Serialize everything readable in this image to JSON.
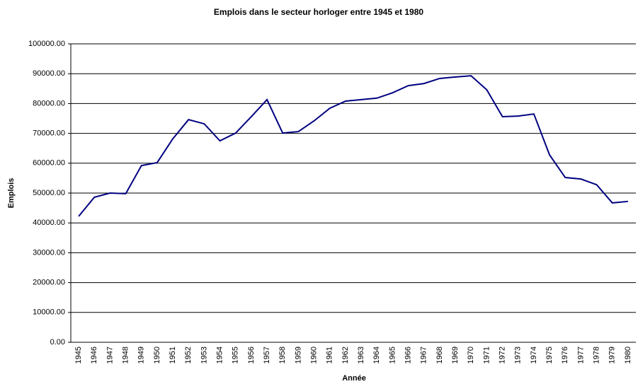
{
  "chart_data": {
    "type": "line",
    "title": "Emplois dans le secteur horloger entre 1945 et 1980",
    "xlabel": "Année",
    "ylabel": "Emplois",
    "categories": [
      "1945",
      "1946",
      "1947",
      "1948",
      "1949",
      "1950",
      "1951",
      "1952",
      "1953",
      "1954",
      "1955",
      "1956",
      "1957",
      "1958",
      "1959",
      "1960",
      "1961",
      "1962",
      "1963",
      "1964",
      "1965",
      "1966",
      "1967",
      "1968",
      "1969",
      "1970",
      "1971",
      "1972",
      "1973",
      "1974",
      "1975",
      "1976",
      "1977",
      "1978",
      "1979",
      "1980"
    ],
    "series": [
      {
        "name": "Emplois",
        "color": "#000080",
        "values": [
          42200,
          48600,
          50000,
          49800,
          59200,
          60200,
          68200,
          74600,
          73200,
          67500,
          70100,
          75600,
          81300,
          70100,
          70600,
          74200,
          78400,
          80800,
          81300,
          81800,
          83600,
          86000,
          86700,
          88400,
          88900,
          89300,
          84600,
          75600,
          75800,
          76500,
          62800,
          55200,
          54700,
          52800,
          46700,
          47200
        ]
      }
    ],
    "ylim": [
      0,
      100000
    ],
    "yticks": [
      {
        "value": 0,
        "label": "0.00"
      },
      {
        "value": 10000,
        "label": "10000.00"
      },
      {
        "value": 20000,
        "label": "20000.00"
      },
      {
        "value": 30000,
        "label": "30000.00"
      },
      {
        "value": 40000,
        "label": "40000.00"
      },
      {
        "value": 50000,
        "label": "50000.00"
      },
      {
        "value": 60000,
        "label": "60000.00"
      },
      {
        "value": 70000,
        "label": "70000.00"
      },
      {
        "value": 80000,
        "label": "80000.00"
      },
      {
        "value": 90000,
        "label": "90000.00"
      },
      {
        "value": 100000,
        "label": "100000.00"
      }
    ],
    "grid": true
  }
}
